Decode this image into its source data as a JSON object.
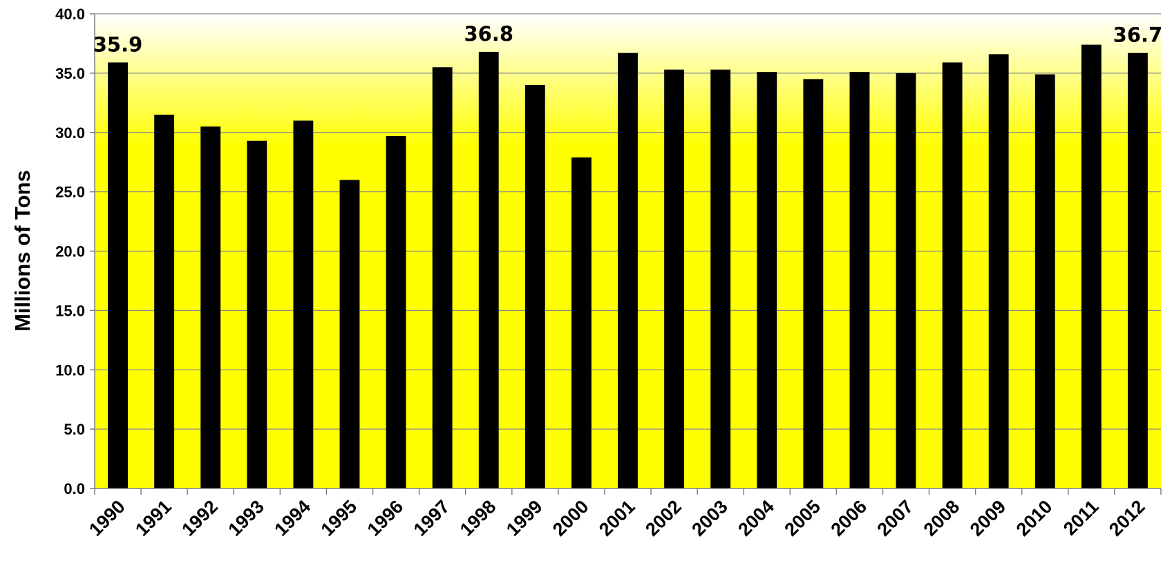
{
  "chart_data": {
    "type": "bar",
    "title": "",
    "xlabel": "",
    "ylabel": "Millions of Tons",
    "ylim": [
      0,
      40
    ],
    "yticks": [
      "0.0",
      "5.0",
      "10.0",
      "15.0",
      "20.0",
      "25.0",
      "30.0",
      "35.0",
      "40.0"
    ],
    "grid": true,
    "legend": "none",
    "categories": [
      "1990",
      "1991",
      "1992",
      "1993",
      "1994",
      "1995",
      "1996",
      "1997",
      "1998",
      "1999",
      "2000",
      "2001",
      "2002",
      "2003",
      "2004",
      "2005",
      "2006",
      "2007",
      "2008",
      "2009",
      "2010",
      "2011",
      "2012"
    ],
    "values": [
      35.9,
      31.5,
      30.5,
      29.3,
      31.0,
      26.0,
      29.7,
      35.5,
      36.8,
      34.0,
      27.9,
      36.7,
      35.3,
      35.3,
      35.1,
      34.5,
      35.1,
      35.0,
      35.9,
      36.6,
      34.9,
      37.4,
      36.7
    ],
    "data_labels": [
      {
        "category": "1990",
        "text": "35.9"
      },
      {
        "category": "1998",
        "text": "36.8"
      },
      {
        "category": "2012",
        "text": "36.7"
      }
    ],
    "colors": {
      "bar": "#000000",
      "background_top": "#ffffff",
      "background_bottom": "#ffff00",
      "gridline": "#8c8c8c"
    }
  }
}
